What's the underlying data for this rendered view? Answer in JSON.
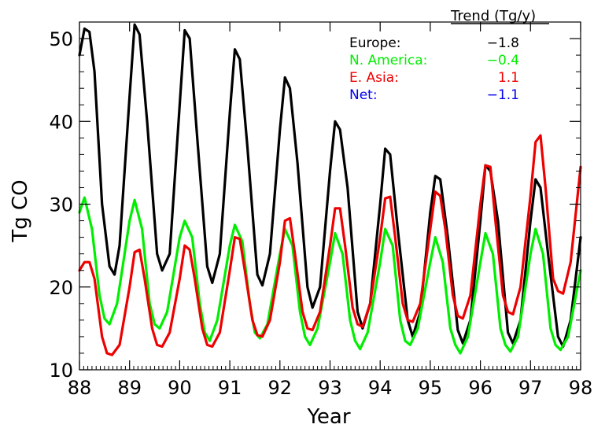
{
  "chart_data": {
    "type": "line",
    "xlabel": "Year",
    "ylabel": "Tg CO",
    "xlim": [
      88,
      98
    ],
    "ylim": [
      10,
      52
    ],
    "xticks": [
      88,
      89,
      90,
      91,
      92,
      93,
      94,
      95,
      96,
      97,
      98
    ],
    "xtick_labels": [
      "88",
      "89",
      "90",
      "91",
      "92",
      "93",
      "94",
      "95",
      "96",
      "97",
      "98"
    ],
    "yticks": [
      10,
      20,
      30,
      40,
      50
    ],
    "ytick_labels": [
      "10",
      "20",
      "30",
      "40",
      "50"
    ],
    "grid": false,
    "legend": {
      "placement": "top-right",
      "header": "Trend (Tg/y)",
      "entries": [
        {
          "label": "Europe:",
          "value": "−1.8",
          "color": "#000000"
        },
        {
          "label": "N. America:",
          "value": "−0.4",
          "color": "#00ee00"
        },
        {
          "label": "E. Asia:",
          "value": "1.1",
          "color": "#ee0000"
        },
        {
          "label": "Net:",
          "value": "−1.1",
          "color": "#0000ee"
        }
      ]
    },
    "series": [
      {
        "name": "Europe",
        "color": "#000000",
        "x": [
          88.0,
          88.1,
          88.2,
          88.3,
          88.45,
          88.6,
          88.7,
          88.8,
          89.0,
          89.1,
          89.2,
          89.35,
          89.55,
          89.65,
          89.8,
          90.0,
          90.1,
          90.2,
          90.35,
          90.55,
          90.65,
          90.8,
          91.0,
          91.1,
          91.2,
          91.35,
          91.55,
          91.65,
          91.8,
          92.0,
          92.1,
          92.2,
          92.35,
          92.55,
          92.65,
          92.8,
          93.0,
          93.1,
          93.2,
          93.35,
          93.55,
          93.65,
          93.8,
          94.0,
          94.1,
          94.2,
          94.35,
          94.55,
          94.65,
          94.8,
          95.0,
          95.1,
          95.2,
          95.35,
          95.55,
          95.65,
          95.8,
          96.0,
          96.1,
          96.2,
          96.35,
          96.55,
          96.65,
          96.8,
          97.0,
          97.1,
          97.2,
          97.35,
          97.55,
          97.65,
          97.8,
          98.0
        ],
        "values": [
          48,
          51.2,
          50.8,
          46,
          30,
          22.5,
          21.5,
          25,
          43,
          51.7,
          50.5,
          40,
          24,
          22,
          24,
          42,
          51,
          50,
          38,
          22.5,
          20.5,
          24,
          41,
          48.7,
          47.5,
          37,
          21.5,
          20.2,
          24,
          39,
          45.3,
          44,
          35,
          20,
          17.5,
          20,
          34,
          40,
          39,
          32,
          17,
          15,
          18,
          30,
          36.7,
          36,
          27,
          16,
          14,
          17,
          29,
          33.4,
          33,
          26,
          14.8,
          13.2,
          16,
          28,
          34.7,
          34,
          28,
          14.5,
          13.2,
          16,
          28,
          33,
          32,
          24,
          14,
          12.8,
          16,
          26
        ]
      },
      {
        "name": "N. America",
        "color": "#00ee00",
        "x": [
          88.0,
          88.1,
          88.25,
          88.4,
          88.5,
          88.6,
          88.75,
          89.0,
          89.1,
          89.25,
          89.4,
          89.5,
          89.6,
          89.75,
          90.0,
          90.1,
          90.25,
          90.4,
          90.5,
          90.6,
          90.75,
          91.0,
          91.1,
          91.25,
          91.4,
          91.5,
          91.6,
          91.75,
          92.0,
          92.1,
          92.25,
          92.4,
          92.5,
          92.6,
          92.75,
          93.0,
          93.1,
          93.25,
          93.4,
          93.5,
          93.6,
          93.75,
          94.0,
          94.1,
          94.25,
          94.4,
          94.5,
          94.6,
          94.75,
          95.0,
          95.1,
          95.25,
          95.4,
          95.5,
          95.6,
          95.75,
          96.0,
          96.1,
          96.25,
          96.4,
          96.5,
          96.6,
          96.75,
          97.0,
          97.1,
          97.25,
          97.4,
          97.5,
          97.6,
          97.75,
          98.0
        ],
        "values": [
          29,
          30.8,
          27,
          19,
          16.2,
          15.5,
          18,
          28,
          30.5,
          27,
          18,
          15.5,
          15,
          17,
          26,
          28,
          26,
          18,
          14.5,
          13.5,
          16,
          25,
          27.5,
          25.5,
          18,
          14.5,
          13.8,
          15.5,
          24,
          27,
          25,
          17,
          14,
          13,
          15,
          23,
          26.5,
          24,
          16,
          13.5,
          12.5,
          14.5,
          23,
          27,
          25,
          16,
          13.5,
          13,
          15,
          23,
          26,
          23,
          15,
          13,
          12,
          14,
          23,
          26.5,
          24,
          15,
          13,
          12.2,
          14,
          24,
          27,
          24,
          15,
          13,
          12.4,
          14,
          22
        ]
      },
      {
        "name": "E. Asia",
        "color": "#ee0000",
        "x": [
          88.0,
          88.1,
          88.2,
          88.3,
          88.45,
          88.55,
          88.65,
          88.8,
          89.0,
          89.1,
          89.2,
          89.3,
          89.45,
          89.55,
          89.65,
          89.8,
          90.0,
          90.1,
          90.2,
          90.3,
          90.45,
          90.55,
          90.65,
          90.8,
          91.0,
          91.1,
          91.2,
          91.3,
          91.45,
          91.55,
          91.65,
          91.8,
          92.0,
          92.1,
          92.2,
          92.3,
          92.45,
          92.55,
          92.65,
          92.8,
          93.0,
          93.1,
          93.2,
          93.3,
          93.45,
          93.55,
          93.65,
          93.8,
          94.0,
          94.1,
          94.2,
          94.3,
          94.45,
          94.55,
          94.65,
          94.8,
          95.0,
          95.1,
          95.2,
          95.3,
          95.45,
          95.55,
          95.65,
          95.8,
          96.0,
          96.1,
          96.2,
          96.3,
          96.45,
          96.55,
          96.65,
          96.8,
          97.0,
          97.1,
          97.2,
          97.3,
          97.45,
          97.55,
          97.65,
          97.8,
          98.0
        ],
        "values": [
          22,
          23,
          23,
          21,
          14,
          12,
          11.8,
          13,
          20,
          24.2,
          24.5,
          21,
          15,
          13,
          12.8,
          14.5,
          21,
          25,
          24.5,
          21,
          15,
          13,
          12.8,
          14.5,
          22,
          26,
          25.8,
          22,
          16,
          14.2,
          14,
          16,
          23,
          28,
          28.3,
          24,
          17,
          15,
          14.8,
          17,
          25,
          29.5,
          29.5,
          25,
          17.5,
          15.5,
          15.2,
          18,
          26,
          30.7,
          30.9,
          26,
          18,
          16,
          15.8,
          18,
          27,
          31.5,
          31,
          27,
          19,
          16.5,
          16.2,
          19,
          30,
          34.7,
          34.5,
          28,
          19,
          17,
          16.7,
          20,
          31,
          37.5,
          38.3,
          32,
          21,
          19.5,
          19.2,
          23,
          34.5
        ]
      }
    ]
  }
}
